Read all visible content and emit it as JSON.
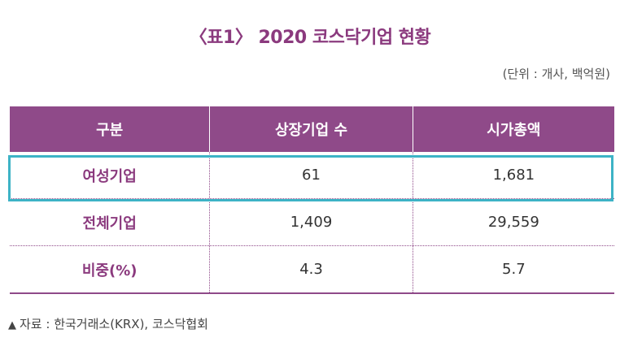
{
  "title": "〈표1〉 2020 코스닥기업 현황",
  "unit": "(단위 : 개사, 백억원)",
  "table": {
    "headers": [
      "구분",
      "상장기업 수",
      "시가총액"
    ],
    "rows": [
      {
        "label": "여성기업",
        "count": "61",
        "cap": "1,681"
      },
      {
        "label": "전체기업",
        "count": "1,409",
        "cap": "29,559"
      },
      {
        "label": "비중(%)",
        "count": "4.3",
        "cap": "5.7"
      }
    ]
  },
  "source": {
    "marker": "▲",
    "text": "자료 : 한국거래소(KRX), 코스닥협회"
  },
  "colors": {
    "accent": "#8f4a89",
    "highlight": "#3db3c6"
  }
}
